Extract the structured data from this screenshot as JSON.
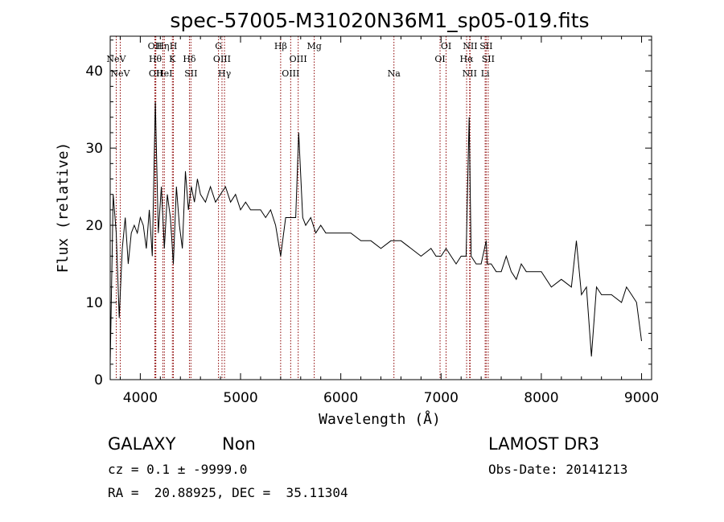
{
  "chart_data": {
    "type": "line",
    "title": "spec-57005-M31020N36M1_sp05-019.fits",
    "xlabel": "Wavelength (Å)",
    "ylabel": "Flux (relative)",
    "xlim": [
      3700,
      9100
    ],
    "ylim": [
      0,
      44.5
    ],
    "xticks": [
      4000,
      5000,
      6000,
      7000,
      8000,
      9000
    ],
    "xtick_labels": [
      "4000",
      "5000",
      "6000",
      "7000",
      "8000",
      "9000"
    ],
    "yticks": [
      0,
      10,
      20,
      30,
      40
    ],
    "ytick_labels": [
      "0",
      "10",
      "20",
      "30",
      "40"
    ],
    "line_color": "#000000",
    "marker_color": "#8b0000",
    "spectral_lines": [
      {
        "label": "NeV",
        "wavelength": 3760,
        "row": 1
      },
      {
        "label": "NeV",
        "wavelength": 3800,
        "row": 3
      },
      {
        "label": "OII",
        "wavelength": 4145,
        "row": 0
      },
      {
        "label": "Hθ",
        "wavelength": 4150,
        "row": 1
      },
      {
        "label": "OII",
        "wavelength": 4155,
        "row": 3
      },
      {
        "label": "Hη",
        "wavelength": 4225,
        "row": 0
      },
      {
        "label": "HeI",
        "wavelength": 4240,
        "row": 3
      },
      {
        "label": "H",
        "wavelength": 4330,
        "row": 0
      },
      {
        "label": "K",
        "wavelength": 4320,
        "row": 1
      },
      {
        "label": "Hδ",
        "wavelength": 4490,
        "row": 1
      },
      {
        "label": "SII",
        "wavelength": 4505,
        "row": 3
      },
      {
        "label": "G",
        "wavelength": 4780,
        "row": 0
      },
      {
        "label": "OIII",
        "wavelength": 4815,
        "row": 2
      },
      {
        "label": "Hγ",
        "wavelength": 4840,
        "row": 3
      },
      {
        "label": "Hβ",
        "wavelength": 5400,
        "row": 0
      },
      {
        "label": "OIII",
        "wavelength": 5575,
        "row": 2
      },
      {
        "label": "OIII",
        "wavelength": 5500,
        "row": 3
      },
      {
        "label": "Mg",
        "wavelength": 5735,
        "row": 0
      },
      {
        "label": "Na",
        "wavelength": 6530,
        "row": 3
      },
      {
        "label": "OI",
        "wavelength": 7050,
        "row": 0
      },
      {
        "label": "OI",
        "wavelength": 6990,
        "row": 2
      },
      {
        "label": "NII",
        "wavelength": 7290,
        "row": 0
      },
      {
        "label": "Hα",
        "wavelength": 7255,
        "row": 2
      },
      {
        "label": "NII",
        "wavelength": 7285,
        "row": 3
      },
      {
        "label": "SII",
        "wavelength": 7450,
        "row": 0
      },
      {
        "label": "SII",
        "wavelength": 7470,
        "row": 2
      },
      {
        "label": "Li",
        "wavelength": 7440,
        "row": 3
      }
    ],
    "series": [
      {
        "x": [
          3700,
          3730,
          3760,
          3790,
          3820,
          3850,
          3880,
          3910,
          3940,
          3970,
          4000,
          4030,
          4060,
          4090,
          4120,
          4150,
          4180,
          4210,
          4240,
          4270,
          4300,
          4330,
          4360,
          4390,
          4420,
          4450,
          4480,
          4510,
          4540,
          4570,
          4600,
          4650,
          4700,
          4750,
          4800,
          4850,
          4900,
          4950,
          5000,
          5050,
          5100,
          5150,
          5200,
          5250,
          5300,
          5350,
          5400,
          5450,
          5500,
          5550,
          5580,
          5620,
          5650,
          5700,
          5750,
          5800,
          5850,
          5900,
          5950,
          6000,
          6100,
          6200,
          6300,
          6400,
          6500,
          6550,
          6600,
          6700,
          6800,
          6900,
          6950,
          7000,
          7050,
          7100,
          7150,
          7200,
          7250,
          7280,
          7300,
          7350,
          7400,
          7450,
          7460,
          7500,
          7550,
          7600,
          7650,
          7700,
          7750,
          7800,
          7850,
          7900,
          7950,
          8000,
          8100,
          8200,
          8300,
          8350,
          8400,
          8450,
          8500,
          8550,
          8600,
          8700,
          8800,
          8850,
          8900,
          8950,
          9000
        ],
        "y": [
          2,
          24,
          19,
          8,
          17,
          21,
          15,
          19,
          20,
          19,
          21,
          20,
          17,
          22,
          16,
          36,
          19,
          25,
          17,
          24,
          21,
          15,
          25,
          20,
          17,
          27,
          22,
          25,
          23,
          26,
          24,
          23,
          25,
          23,
          24,
          25,
          23,
          24,
          22,
          23,
          22,
          22,
          22,
          21,
          22,
          20,
          16,
          21,
          21,
          21,
          32,
          21,
          20,
          21,
          19,
          20,
          19,
          19,
          19,
          19,
          19,
          18,
          18,
          17,
          18,
          18,
          18,
          17,
          16,
          17,
          16,
          16,
          17,
          16,
          15,
          16,
          16,
          34,
          16,
          15,
          15,
          18,
          15,
          15,
          14,
          14,
          16,
          14,
          13,
          15,
          14,
          14,
          14,
          14,
          12,
          13,
          12,
          18,
          11,
          12,
          3,
          12,
          11,
          11,
          10,
          12,
          11,
          10,
          5
        ]
      }
    ]
  },
  "info": {
    "class": "GALAXY",
    "subclass": "Non",
    "survey": "LAMOST DR3",
    "cz": "cz = 0.1 ± -9999.0",
    "obs_date": "Obs-Date: 20141213",
    "radec": "RA =  20.88925, DEC =  35.11304"
  }
}
